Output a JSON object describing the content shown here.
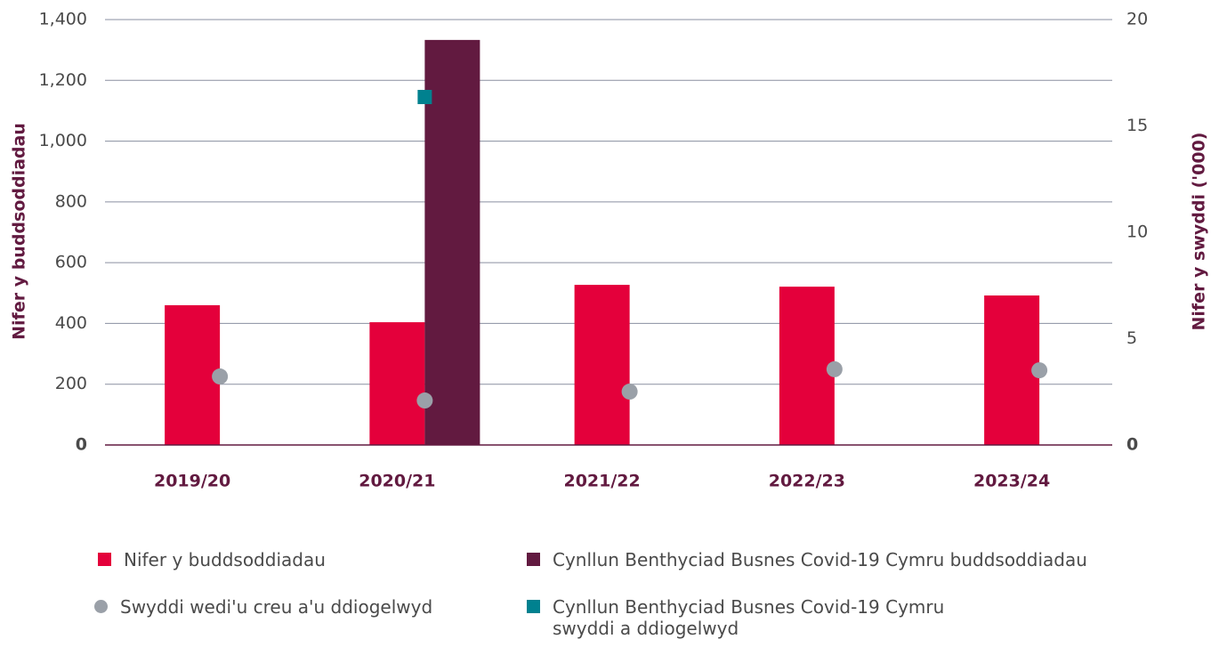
{
  "chart_data": {
    "type": "bar",
    "categories": [
      "2019/20",
      "2020/21",
      "2021/22",
      "2022/23",
      "2023/24"
    ],
    "ylabel": "Nifer y buddsoddiadau",
    "y2label": "Nifer y swyddi ('000)",
    "ylim": [
      0,
      1400
    ],
    "yticks": [
      0,
      200,
      400,
      600,
      800,
      {
        "value": 1000,
        "label": "1,000"
      },
      {
        "value": 1200,
        "label": "1,200"
      },
      {
        "value": 1400,
        "label": "1,400"
      }
    ],
    "y2lim": [
      0,
      20
    ],
    "y2ticks": [
      0,
      5,
      10,
      15,
      20
    ],
    "grid": true,
    "series": [
      {
        "name": "Nifer y buddsoddiadau",
        "type": "bar",
        "color": "#e4003b",
        "values": [
          460,
          404,
          527,
          521,
          492
        ]
      },
      {
        "name": "Cynllun Benthyciad Busnes Covid-19 Cymru buddsoddiadau",
        "type": "bar",
        "color": "#621a40",
        "values": [
          null,
          1333,
          null,
          null,
          null
        ]
      },
      {
        "name": "Swyddi wedi'u creu a'u ddiogelwyd",
        "type": "scatter",
        "marker": "circle",
        "axis": "y2",
        "color": "#9aa0a8",
        "values": [
          3.22,
          2.09,
          2.51,
          3.56,
          3.51
        ]
      },
      {
        "name": "Cynllun Benthyciad Busnes Covid-19 Cymru swyddi a ddiogelwyd",
        "type": "scatter",
        "marker": "square",
        "axis": "y2",
        "color": "#00818f",
        "values": [
          null,
          16.36,
          null,
          null,
          null
        ]
      }
    ]
  }
}
